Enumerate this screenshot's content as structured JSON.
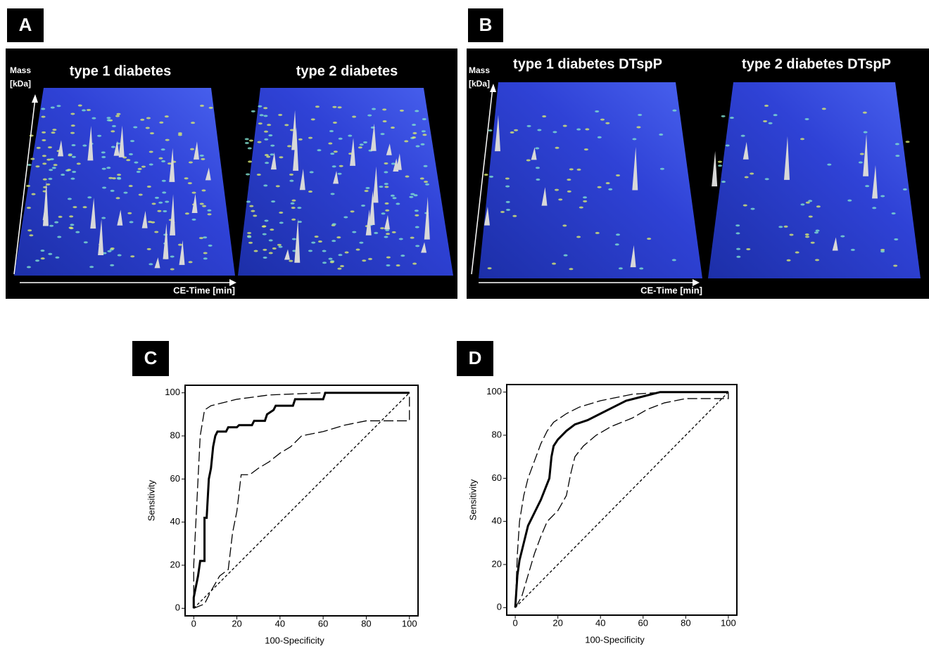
{
  "panels": [
    {
      "label": "A",
      "titles": [
        "type 1 diabetes",
        "type 2 diabetes"
      ],
      "y_label": [
        "Mass",
        "[kDa]"
      ],
      "x_label": "CE-Time [min]"
    },
    {
      "label": "B",
      "titles": [
        "type 1 diabetes DTspP",
        "type 2 diabetes DTspP"
      ],
      "y_label": [
        "Mass",
        "[kDa]"
      ],
      "x_label": "CE-Time [min]"
    }
  ],
  "chart_data": [
    {
      "type": "line",
      "label": "C",
      "xlabel": "100-Specificity",
      "ylabel": "Sensitivity",
      "xlim": [
        -4,
        104
      ],
      "ylim": [
        -3.5,
        103.5
      ],
      "xticks": [
        0,
        20,
        40,
        60,
        80,
        100
      ],
      "yticks": [
        0,
        20,
        40,
        60,
        80,
        100
      ],
      "series": [
        {
          "color": "#000000",
          "dash": "solid",
          "x": [
            0,
            0,
            1,
            2,
            3,
            5,
            5,
            6,
            7,
            8,
            9,
            10,
            11,
            15,
            16,
            20,
            21,
            27,
            28,
            33,
            34,
            37,
            38,
            46,
            47,
            60,
            61,
            100
          ],
          "values": [
            0,
            5,
            10,
            15,
            22,
            22,
            42,
            42,
            60,
            65,
            75,
            80,
            82,
            82,
            84,
            84,
            85,
            85,
            87,
            87,
            90,
            92,
            94,
            94,
            97,
            97,
            100,
            100
          ]
        },
        {
          "color": "#000000",
          "dash": "long-dash",
          "x": [
            0,
            0,
            1,
            2,
            3,
            5,
            8,
            20,
            35,
            60,
            100
          ],
          "values": [
            0,
            20,
            40,
            60,
            80,
            92,
            94,
            97,
            99,
            100,
            100
          ]
        },
        {
          "color": "#000000",
          "dash": "long-dash",
          "x": [
            0,
            5,
            8,
            12,
            16,
            18,
            20,
            22,
            26,
            30,
            35,
            40,
            45,
            50,
            60,
            70,
            80,
            100,
            100
          ],
          "values": [
            0,
            2,
            8,
            15,
            18,
            35,
            45,
            62,
            62,
            65,
            68,
            72,
            75,
            80,
            82,
            85,
            87,
            87,
            100
          ]
        },
        {
          "color": "#000000",
          "dash": "short-dash",
          "x": [
            0,
            100
          ],
          "values": [
            0,
            100
          ]
        }
      ]
    },
    {
      "type": "line",
      "label": "D",
      "xlabel": "100-Specificity",
      "ylabel": "Sensitivity",
      "xlim": [
        -4,
        104
      ],
      "ylim": [
        -3.5,
        103.5
      ],
      "xticks": [
        0,
        20,
        40,
        60,
        80,
        100
      ],
      "yticks": [
        0,
        20,
        40,
        60,
        80,
        100
      ],
      "series": [
        {
          "color": "#000000",
          "dash": "solid",
          "x": [
            0,
            1,
            2,
            4,
            6,
            8,
            10,
            12,
            14,
            16,
            17,
            18,
            20,
            24,
            28,
            34,
            40,
            46,
            52,
            60,
            68,
            100
          ],
          "values": [
            0,
            15,
            22,
            30,
            38,
            42,
            46,
            50,
            55,
            60,
            70,
            75,
            78,
            82,
            85,
            87,
            90,
            93,
            96,
            98,
            100,
            100
          ]
        },
        {
          "color": "#000000",
          "dash": "long-dash",
          "x": [
            0,
            1,
            2,
            4,
            6,
            9,
            12,
            15,
            18,
            24,
            30,
            40,
            55,
            70,
            100
          ],
          "values": [
            0,
            25,
            40,
            52,
            60,
            68,
            76,
            82,
            86,
            90,
            93,
            96,
            99,
            100,
            100
          ]
        },
        {
          "color": "#000000",
          "dash": "long-dash",
          "x": [
            0,
            3,
            6,
            9,
            12,
            15,
            20,
            24,
            26,
            28,
            32,
            38,
            45,
            55,
            62,
            70,
            80,
            100,
            100
          ],
          "values": [
            0,
            5,
            15,
            25,
            33,
            40,
            45,
            52,
            62,
            70,
            75,
            80,
            84,
            88,
            92,
            95,
            97,
            97,
            100
          ]
        },
        {
          "color": "#000000",
          "dash": "short-dash",
          "x": [
            0,
            100
          ],
          "values": [
            0,
            100
          ]
        }
      ]
    }
  ]
}
